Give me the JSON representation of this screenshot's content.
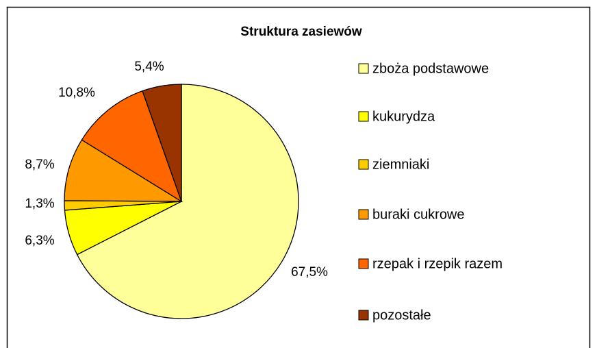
{
  "chart_data": {
    "type": "pie",
    "title": "Struktura zasiewów",
    "categories": [
      "zboża podstawowe",
      "kukurydza",
      "ziemniaki",
      "buraki cukrowe",
      "rzepak i rzepik razem",
      "pozostałe"
    ],
    "values": [
      67.5,
      6.3,
      1.3,
      8.7,
      10.8,
      5.4
    ],
    "value_labels": [
      "67,5%",
      "6,3%",
      "1,3%",
      "8,7%",
      "10,8%",
      "5,4%"
    ],
    "colors": [
      "#FFFF99",
      "#FFFF00",
      "#FFCC00",
      "#FF9900",
      "#FF6600",
      "#993300"
    ],
    "legend": "right"
  }
}
